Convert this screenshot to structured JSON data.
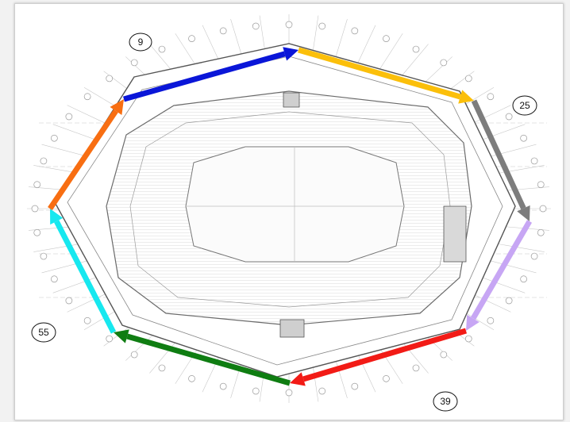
{
  "callouts": [
    {
      "id": "c9",
      "label": "9"
    },
    {
      "id": "c25",
      "label": "25"
    },
    {
      "id": "c39",
      "label": "39"
    },
    {
      "id": "c55",
      "label": "55"
    }
  ],
  "arrows": [
    {
      "id": "blue",
      "color": "#0a16d8"
    },
    {
      "id": "yellow",
      "color": "#fbbf0a"
    },
    {
      "id": "gray",
      "color": "#7d7d7d"
    },
    {
      "id": "purple",
      "color": "#c7a6f4"
    },
    {
      "id": "red",
      "color": "#f21b16"
    },
    {
      "id": "green",
      "color": "#0f7d12"
    },
    {
      "id": "cyan",
      "color": "#17e8ef"
    },
    {
      "id": "orange",
      "color": "#f86e12"
    }
  ]
}
